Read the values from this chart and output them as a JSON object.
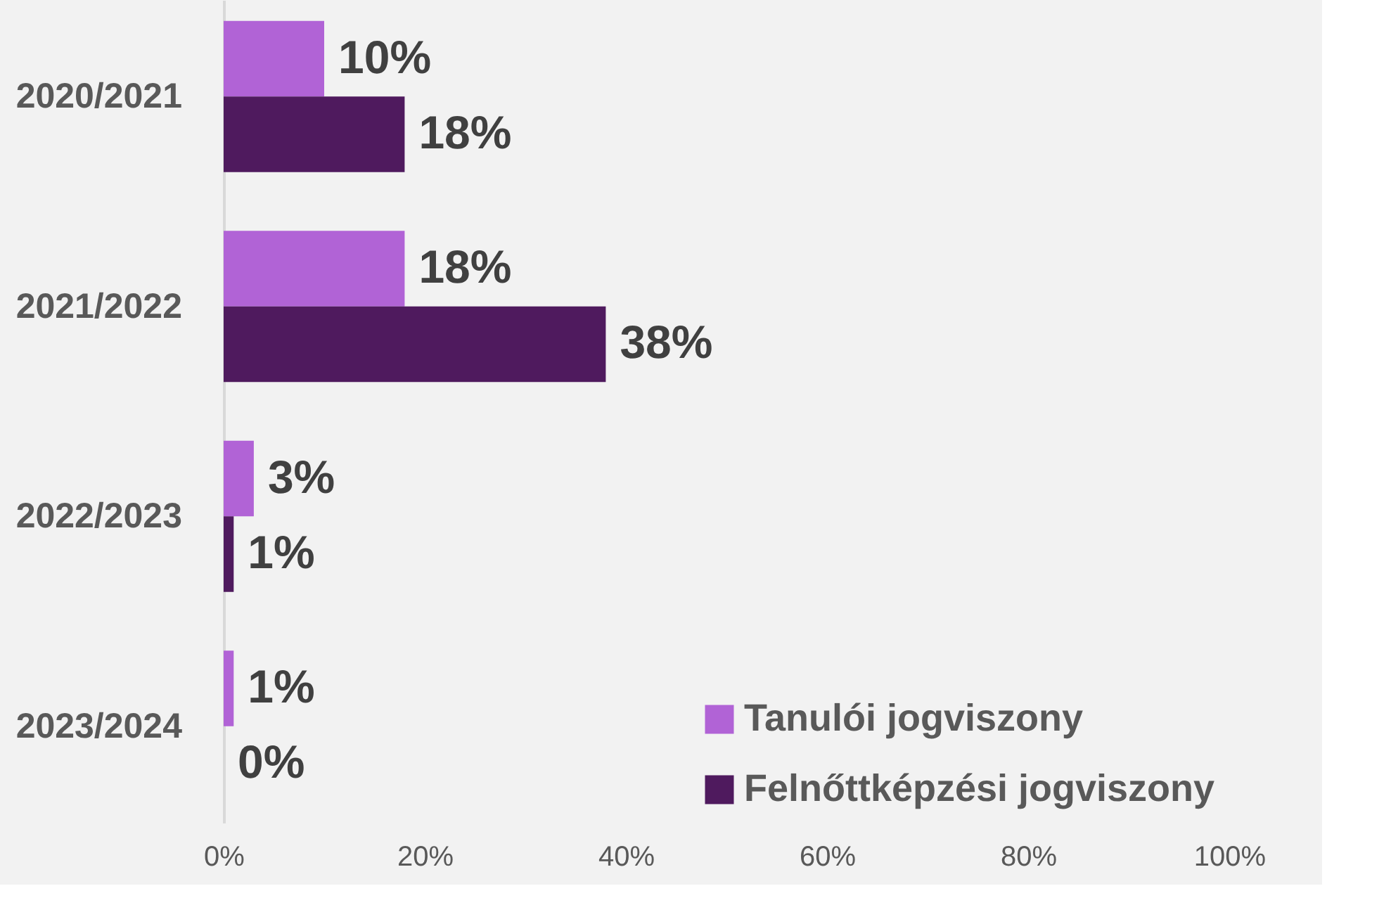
{
  "chart_data": {
    "type": "bar",
    "orientation": "horizontal",
    "categories": [
      "2020/2021",
      "2021/2022",
      "2022/2023",
      "2023/2024"
    ],
    "series": [
      {
        "name": "Tanulói jogviszony",
        "color": "#b163d6",
        "values": [
          10,
          18,
          3,
          1
        ],
        "value_labels": [
          "10%",
          "18%",
          "3%",
          "1%"
        ]
      },
      {
        "name": "Felnőttképzési jogviszony",
        "color": "#4f1a5e",
        "values": [
          18,
          38,
          1,
          0
        ],
        "value_labels": [
          "18%",
          "38%",
          "1%",
          "0%"
        ]
      }
    ],
    "xlim": [
      0,
      100
    ],
    "xticks": [
      {
        "value": 0,
        "label": "0%"
      },
      {
        "value": 20,
        "label": "20%"
      },
      {
        "value": 40,
        "label": "40%"
      },
      {
        "value": 60,
        "label": "60%"
      },
      {
        "value": 80,
        "label": "80%"
      },
      {
        "value": 100,
        "label": "100%"
      }
    ],
    "grid": false,
    "legend": "bottom right"
  }
}
